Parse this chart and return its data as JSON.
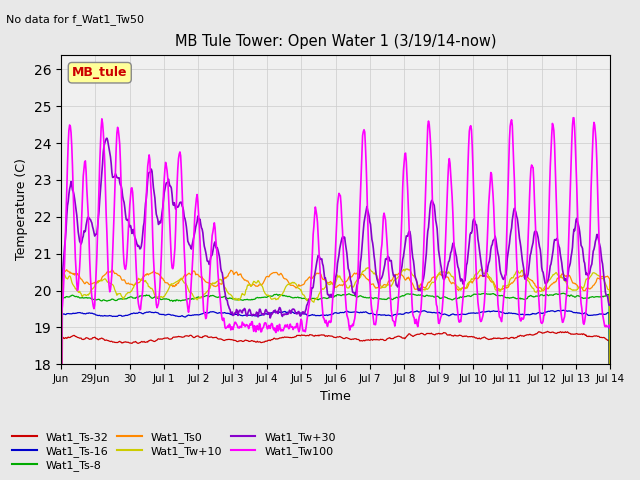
{
  "title": "MB Tule Tower: Open Water 1 (3/19/14-now)",
  "subtitle": "No data for f_Wat1_Tw50",
  "ylabel": "Temperature (C)",
  "xlabel": "Time",
  "ylim": [
    18.0,
    26.4
  ],
  "yticks": [
    18.0,
    19.0,
    20.0,
    21.0,
    22.0,
    23.0,
    24.0,
    25.0,
    26.0
  ],
  "legend_box_label": "MB_tule",
  "series_colors": {
    "Wat1_Ts-32": "#cc0000",
    "Wat1_Ts-16": "#0000cc",
    "Wat1_Ts-8": "#00aa00",
    "Wat1_Ts0": "#ff8800",
    "Wat1_Tw+10": "#cccc00",
    "Wat1_Tw+30": "#8800cc",
    "Wat1_Tw100": "#ff00ff"
  },
  "bg_color": "#e8e8e8",
  "plot_bg_color": "#f0f0f0",
  "xtick_days": [
    0,
    1,
    2,
    3,
    4,
    5,
    6,
    7,
    8,
    9,
    10,
    11,
    12,
    13,
    14,
    15,
    16
  ],
  "xtick_labels": [
    "Jun",
    "29Jun",
    "30",
    "Jul 1",
    "Jul 2",
    "Jul 3",
    "Jul 4",
    "Jul 5",
    "Jul 6",
    "Jul 7",
    "Jul 8",
    "Jul 9",
    "Jul 10",
    "Jul 11",
    "Jul 12",
    "Jul 13",
    "Jul 14"
  ]
}
